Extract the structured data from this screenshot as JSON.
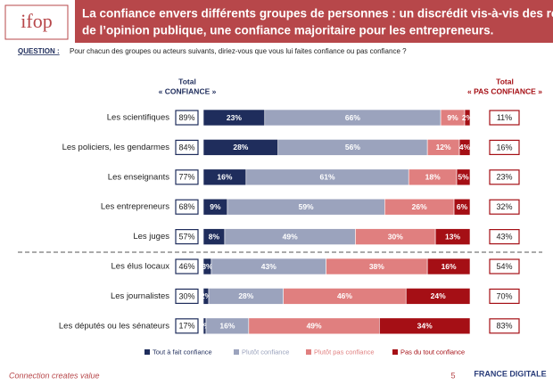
{
  "header": {
    "logo": "ifop",
    "title_lines": [
      "La confiance envers différents groupes de personnes : un discrédit vis-à-vis des relais",
      "de l’opinion publique, une confiance majoritaire pour les entrepreneurs."
    ]
  },
  "question": {
    "label": "QUESTION :",
    "text": "Pour chacun des groupes ou acteurs suivants, diriez-vous que vous lui faites confiance ou pas confiance ?"
  },
  "chart_data": {
    "type": "stacked-bar",
    "orientation": "horizontal",
    "xlim": [
      0,
      100
    ],
    "categories": [
      "Les scientifiques",
      "Les policiers, les gendarmes",
      "Les enseignants",
      "Les entrepreneurs",
      "Les juges",
      "Les élus locaux",
      "Les journalistes",
      "Les députés ou les sénateurs"
    ],
    "series": [
      {
        "name": "Tout à fait confiance",
        "color": "#1f2d5c",
        "values": [
          23,
          28,
          16,
          9,
          8,
          3,
          2,
          1
        ],
        "value_labels": [
          "23%",
          "28%",
          "16%",
          "9%",
          "8%",
          "3%",
          "2%",
          "1%"
        ]
      },
      {
        "name": "Plutôt confiance",
        "color": "#9ba3bd",
        "values": [
          66,
          56,
          61,
          59,
          49,
          43,
          28,
          16
        ],
        "value_labels": [
          "66%",
          "56%",
          "61%",
          "59%",
          "49%",
          "43%",
          "28%",
          "16%"
        ]
      },
      {
        "name": "Plutôt pas confiance",
        "color": "#e07f7f",
        "values": [
          9,
          12,
          18,
          26,
          30,
          38,
          46,
          49
        ],
        "value_labels": [
          "9%",
          "12%",
          "18%",
          "26%",
          "30%",
          "38%",
          "46%",
          "49%"
        ]
      },
      {
        "name": "Pas du tout confiance",
        "color": "#a50f15",
        "values": [
          2,
          4,
          5,
          6,
          13,
          16,
          24,
          34
        ],
        "value_labels": [
          "2%",
          "4%",
          "5%",
          "6%",
          "13%",
          "16%",
          "24%",
          "34%"
        ]
      }
    ],
    "total_left": {
      "title": [
        "Total",
        "« CONFIANCE »"
      ],
      "color": "#1f2d5c",
      "values": [
        89,
        84,
        77,
        68,
        57,
        46,
        30,
        17
      ],
      "value_labels": [
        "89%",
        "84%",
        "77%",
        "68%",
        "57%",
        "46%",
        "30%",
        "17%"
      ]
    },
    "total_right": {
      "title": [
        "Total",
        "« PAS CONFIANCE »"
      ],
      "color": "#a50f15",
      "values": [
        11,
        16,
        23,
        32,
        43,
        54,
        70,
        83
      ],
      "value_labels": [
        "11%",
        "16%",
        "23%",
        "32%",
        "43%",
        "54%",
        "70%",
        "83%"
      ]
    }
  },
  "footer": {
    "tagline": "Connection creates value",
    "page": "5",
    "brand": "FRANCE DIGITALE"
  }
}
